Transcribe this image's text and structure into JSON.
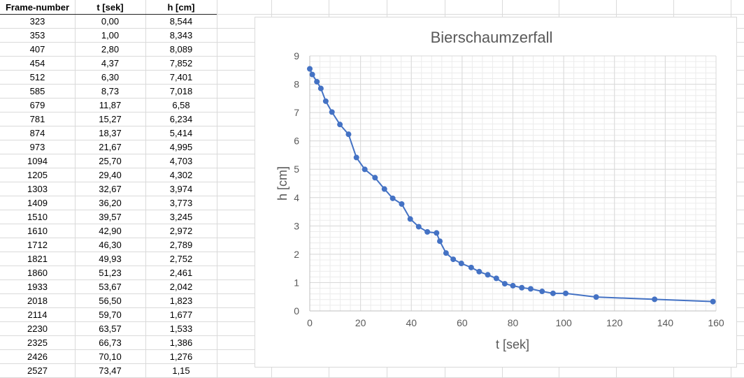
{
  "table": {
    "headers": [
      "Frame-number",
      "t [sek]",
      "h [cm]"
    ],
    "rows": [
      [
        "323",
        "0,00",
        "8,544"
      ],
      [
        "353",
        "1,00",
        "8,343"
      ],
      [
        "407",
        "2,80",
        "8,089"
      ],
      [
        "454",
        "4,37",
        "7,852"
      ],
      [
        "512",
        "6,30",
        "7,401"
      ],
      [
        "585",
        "8,73",
        "7,018"
      ],
      [
        "679",
        "11,87",
        "6,58"
      ],
      [
        "781",
        "15,27",
        "6,234"
      ],
      [
        "874",
        "18,37",
        "5,414"
      ],
      [
        "973",
        "21,67",
        "4,995"
      ],
      [
        "1094",
        "25,70",
        "4,703"
      ],
      [
        "1205",
        "29,40",
        "4,302"
      ],
      [
        "1303",
        "32,67",
        "3,974"
      ],
      [
        "1409",
        "36,20",
        "3,773"
      ],
      [
        "1510",
        "39,57",
        "3,245"
      ],
      [
        "1610",
        "42,90",
        "2,972"
      ],
      [
        "1712",
        "46,30",
        "2,789"
      ],
      [
        "1821",
        "49,93",
        "2,752"
      ],
      [
        "1860",
        "51,23",
        "2,461"
      ],
      [
        "1933",
        "53,67",
        "2,042"
      ],
      [
        "2018",
        "56,50",
        "1,823"
      ],
      [
        "2114",
        "59,70",
        "1,677"
      ],
      [
        "2230",
        "63,57",
        "1,533"
      ],
      [
        "2325",
        "66,73",
        "1,386"
      ],
      [
        "2426",
        "70,10",
        "1,276"
      ],
      [
        "2527",
        "73,47",
        "1,15"
      ]
    ]
  },
  "chart_data": {
    "type": "scatter",
    "title": "Bierschaumzerfall",
    "xlabel": "t [sek]",
    "ylabel": "h [cm]",
    "xlim": [
      0,
      160
    ],
    "ylim": [
      0,
      9
    ],
    "xticks": [
      "0",
      "20",
      "40",
      "60",
      "80",
      "100",
      "120",
      "140",
      "160"
    ],
    "yticks": [
      "0",
      "1",
      "2",
      "3",
      "4",
      "5",
      "6",
      "7",
      "8",
      "9"
    ],
    "grid": "major and minor",
    "legend": "none",
    "series": [
      {
        "color": "#4472c4",
        "x": [
          0,
          1,
          2.8,
          4.37,
          6.3,
          8.73,
          11.87,
          15.27,
          18.37,
          21.67,
          25.7,
          29.4,
          32.67,
          36.2,
          39.57,
          42.9,
          46.3,
          49.93,
          51.23,
          53.67,
          56.5,
          59.7,
          63.57,
          66.73,
          70.1,
          73.47,
          76.8,
          80.0,
          83.5,
          87.0,
          91.5,
          95.8,
          100.8,
          112.8,
          135.8,
          158.8
        ],
        "y": [
          8.544,
          8.343,
          8.089,
          7.852,
          7.401,
          7.018,
          6.58,
          6.234,
          5.414,
          4.995,
          4.703,
          4.302,
          3.974,
          3.773,
          3.245,
          2.972,
          2.789,
          2.752,
          2.461,
          2.042,
          1.823,
          1.677,
          1.533,
          1.386,
          1.276,
          1.15,
          0.96,
          0.89,
          0.82,
          0.78,
          0.69,
          0.62,
          0.62,
          0.49,
          0.41,
          0.33
        ]
      }
    ]
  }
}
